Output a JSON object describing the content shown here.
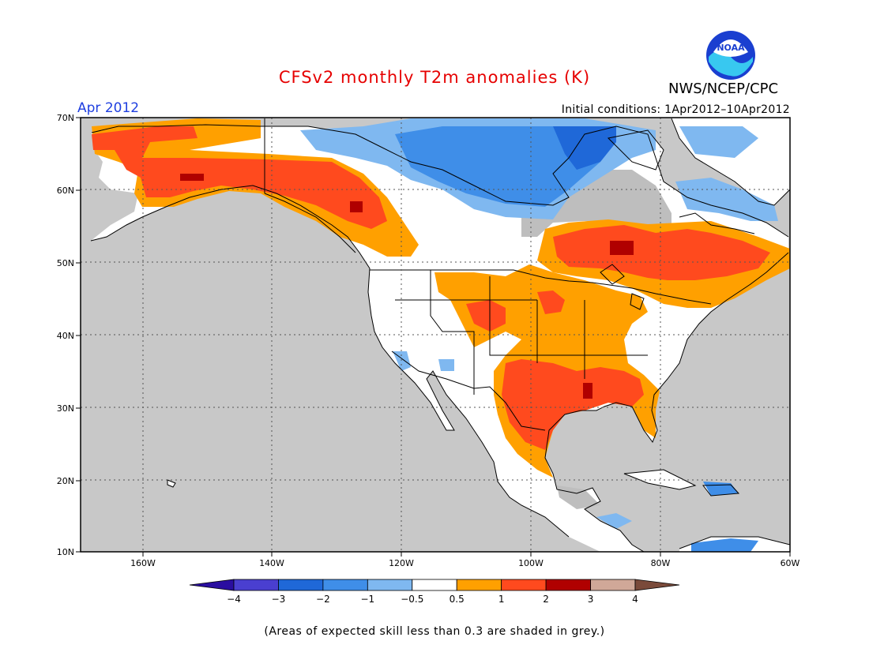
{
  "title": "CFSv2 monthly T2m anomalies (K)",
  "agency": "NWS/NCEP/CPC",
  "period": "Apr 2012",
  "initial_conditions": "Initial conditions: 1Apr2012–10Apr2012",
  "skill_note": "(Areas of expected skill less than 0.3 are shaded in grey.)",
  "logo_text": "NOAA",
  "colors": {
    "title": "#e60000",
    "period": "#1f3fe0",
    "ocean": "#c8c8c8",
    "land_neutral": "#ffffff",
    "low_skill": "#bebebe"
  },
  "map": {
    "lat_labels": [
      "70N",
      "60N",
      "50N",
      "40N",
      "30N",
      "20N",
      "10N"
    ],
    "lon_labels": [
      "160W",
      "140W",
      "120W",
      "100W",
      "80W",
      "60W"
    ]
  },
  "colorbar": {
    "colors": [
      "#2a0ea0",
      "#4a3fd0",
      "#1f68d8",
      "#3f8ee8",
      "#7fb8f0",
      "#ffffff",
      "#ffa000",
      "#ff4a1e",
      "#b00000",
      "#d0a898",
      "#7a4a3a"
    ],
    "labels": [
      "−4",
      "−3",
      "−2",
      "−1",
      "−0.5",
      "0.5",
      "1",
      "2",
      "3",
      "4"
    ]
  }
}
